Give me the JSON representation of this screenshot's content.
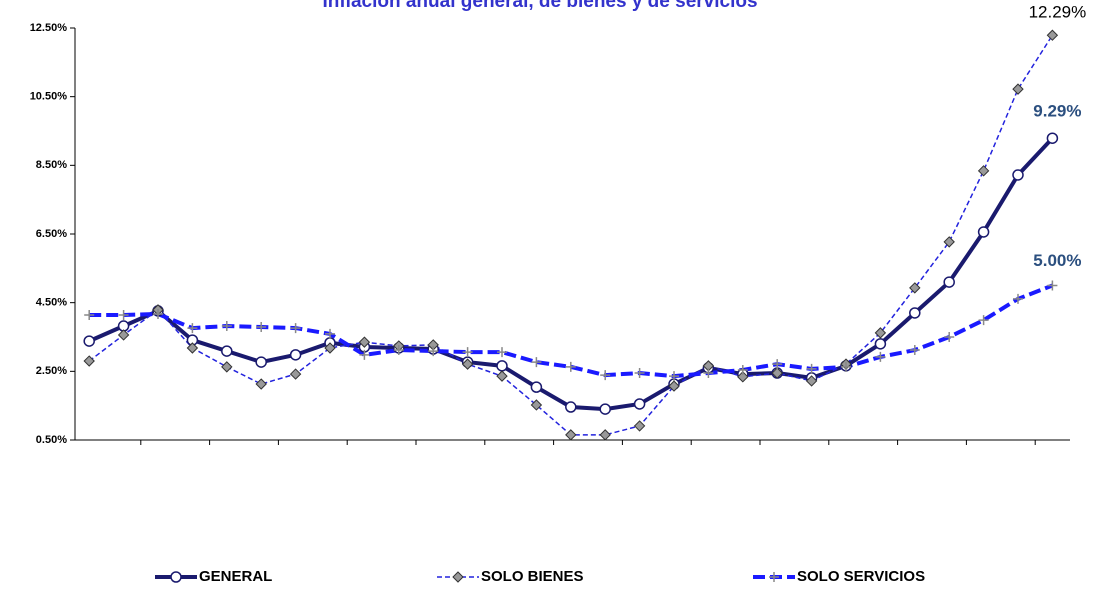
{
  "chart_data": {
    "type": "line",
    "title": "Inflación anual general, de bienes y de servicios",
    "categories": [
      null,
      null,
      null,
      null,
      null,
      null,
      null,
      null,
      null,
      null,
      null,
      null,
      null,
      null,
      null,
      null,
      null,
      null,
      null,
      null,
      null,
      null,
      null,
      null,
      null,
      null,
      null,
      null,
      null
    ],
    "ylim": [
      0.5,
      12.5
    ],
    "yticks": [
      {
        "value": 0.5,
        "label": "0.50%"
      },
      {
        "value": 2.5,
        "label": "2.50%"
      },
      {
        "value": 4.5,
        "label": "4.50%"
      },
      {
        "value": 6.5,
        "label": "6.50%"
      },
      {
        "value": 8.5,
        "label": "8.50%"
      },
      {
        "value": 10.5,
        "label": "10.50%"
      },
      {
        "value": 12.5,
        "label": "12.50%"
      }
    ],
    "legend": "bottom",
    "series": [
      {
        "name": "GENERAL",
        "color": "#1a1a6e",
        "values": [
          3.38,
          3.82,
          4.26,
          3.41,
          3.09,
          2.77,
          2.98,
          3.33,
          3.21,
          3.18,
          3.15,
          2.77,
          2.66,
          2.04,
          1.46,
          1.4,
          1.55,
          2.13,
          2.6,
          2.42,
          2.45,
          2.31,
          2.66,
          3.3,
          4.2,
          5.1,
          6.56,
          8.22,
          9.29
        ],
        "value_labels": [
          null,
          null,
          null,
          null,
          null,
          null,
          null,
          null,
          null,
          null,
          null,
          null,
          null,
          null,
          null,
          null,
          null,
          null,
          null,
          null,
          null,
          null,
          null,
          null,
          null,
          null,
          null,
          null,
          "9.29%"
        ]
      },
      {
        "name": "SOLO BIENES",
        "color": "#2222dd",
        "values": [
          2.8,
          3.56,
          4.29,
          3.18,
          2.63,
          2.13,
          2.42,
          3.18,
          3.35,
          3.24,
          3.27,
          2.71,
          2.36,
          1.52,
          0.65,
          0.65,
          0.91,
          2.07,
          2.66,
          2.34,
          2.45,
          2.22,
          2.71,
          3.62,
          4.93,
          6.27,
          8.34,
          10.72,
          12.29
        ],
        "value_labels": [
          null,
          null,
          null,
          null,
          null,
          null,
          null,
          null,
          null,
          null,
          null,
          null,
          null,
          null,
          null,
          null,
          null,
          null,
          null,
          null,
          null,
          null,
          null,
          null,
          null,
          null,
          null,
          null,
          "12.29%"
        ]
      },
      {
        "name": "SOLO SERVICIOS",
        "color": "#1a1aff",
        "values": [
          4.14,
          4.14,
          4.17,
          3.76,
          3.82,
          3.79,
          3.76,
          3.59,
          2.98,
          3.12,
          3.09,
          3.06,
          3.06,
          2.77,
          2.63,
          2.39,
          2.45,
          2.36,
          2.45,
          2.54,
          2.71,
          2.57,
          2.63,
          2.92,
          3.12,
          3.5,
          3.99,
          4.61,
          5.0
        ],
        "value_labels": [
          null,
          null,
          null,
          null,
          null,
          null,
          null,
          null,
          null,
          null,
          null,
          null,
          null,
          null,
          null,
          null,
          null,
          null,
          null,
          null,
          null,
          null,
          null,
          null,
          null,
          null,
          null,
          null,
          "5.00%"
        ]
      }
    ]
  }
}
